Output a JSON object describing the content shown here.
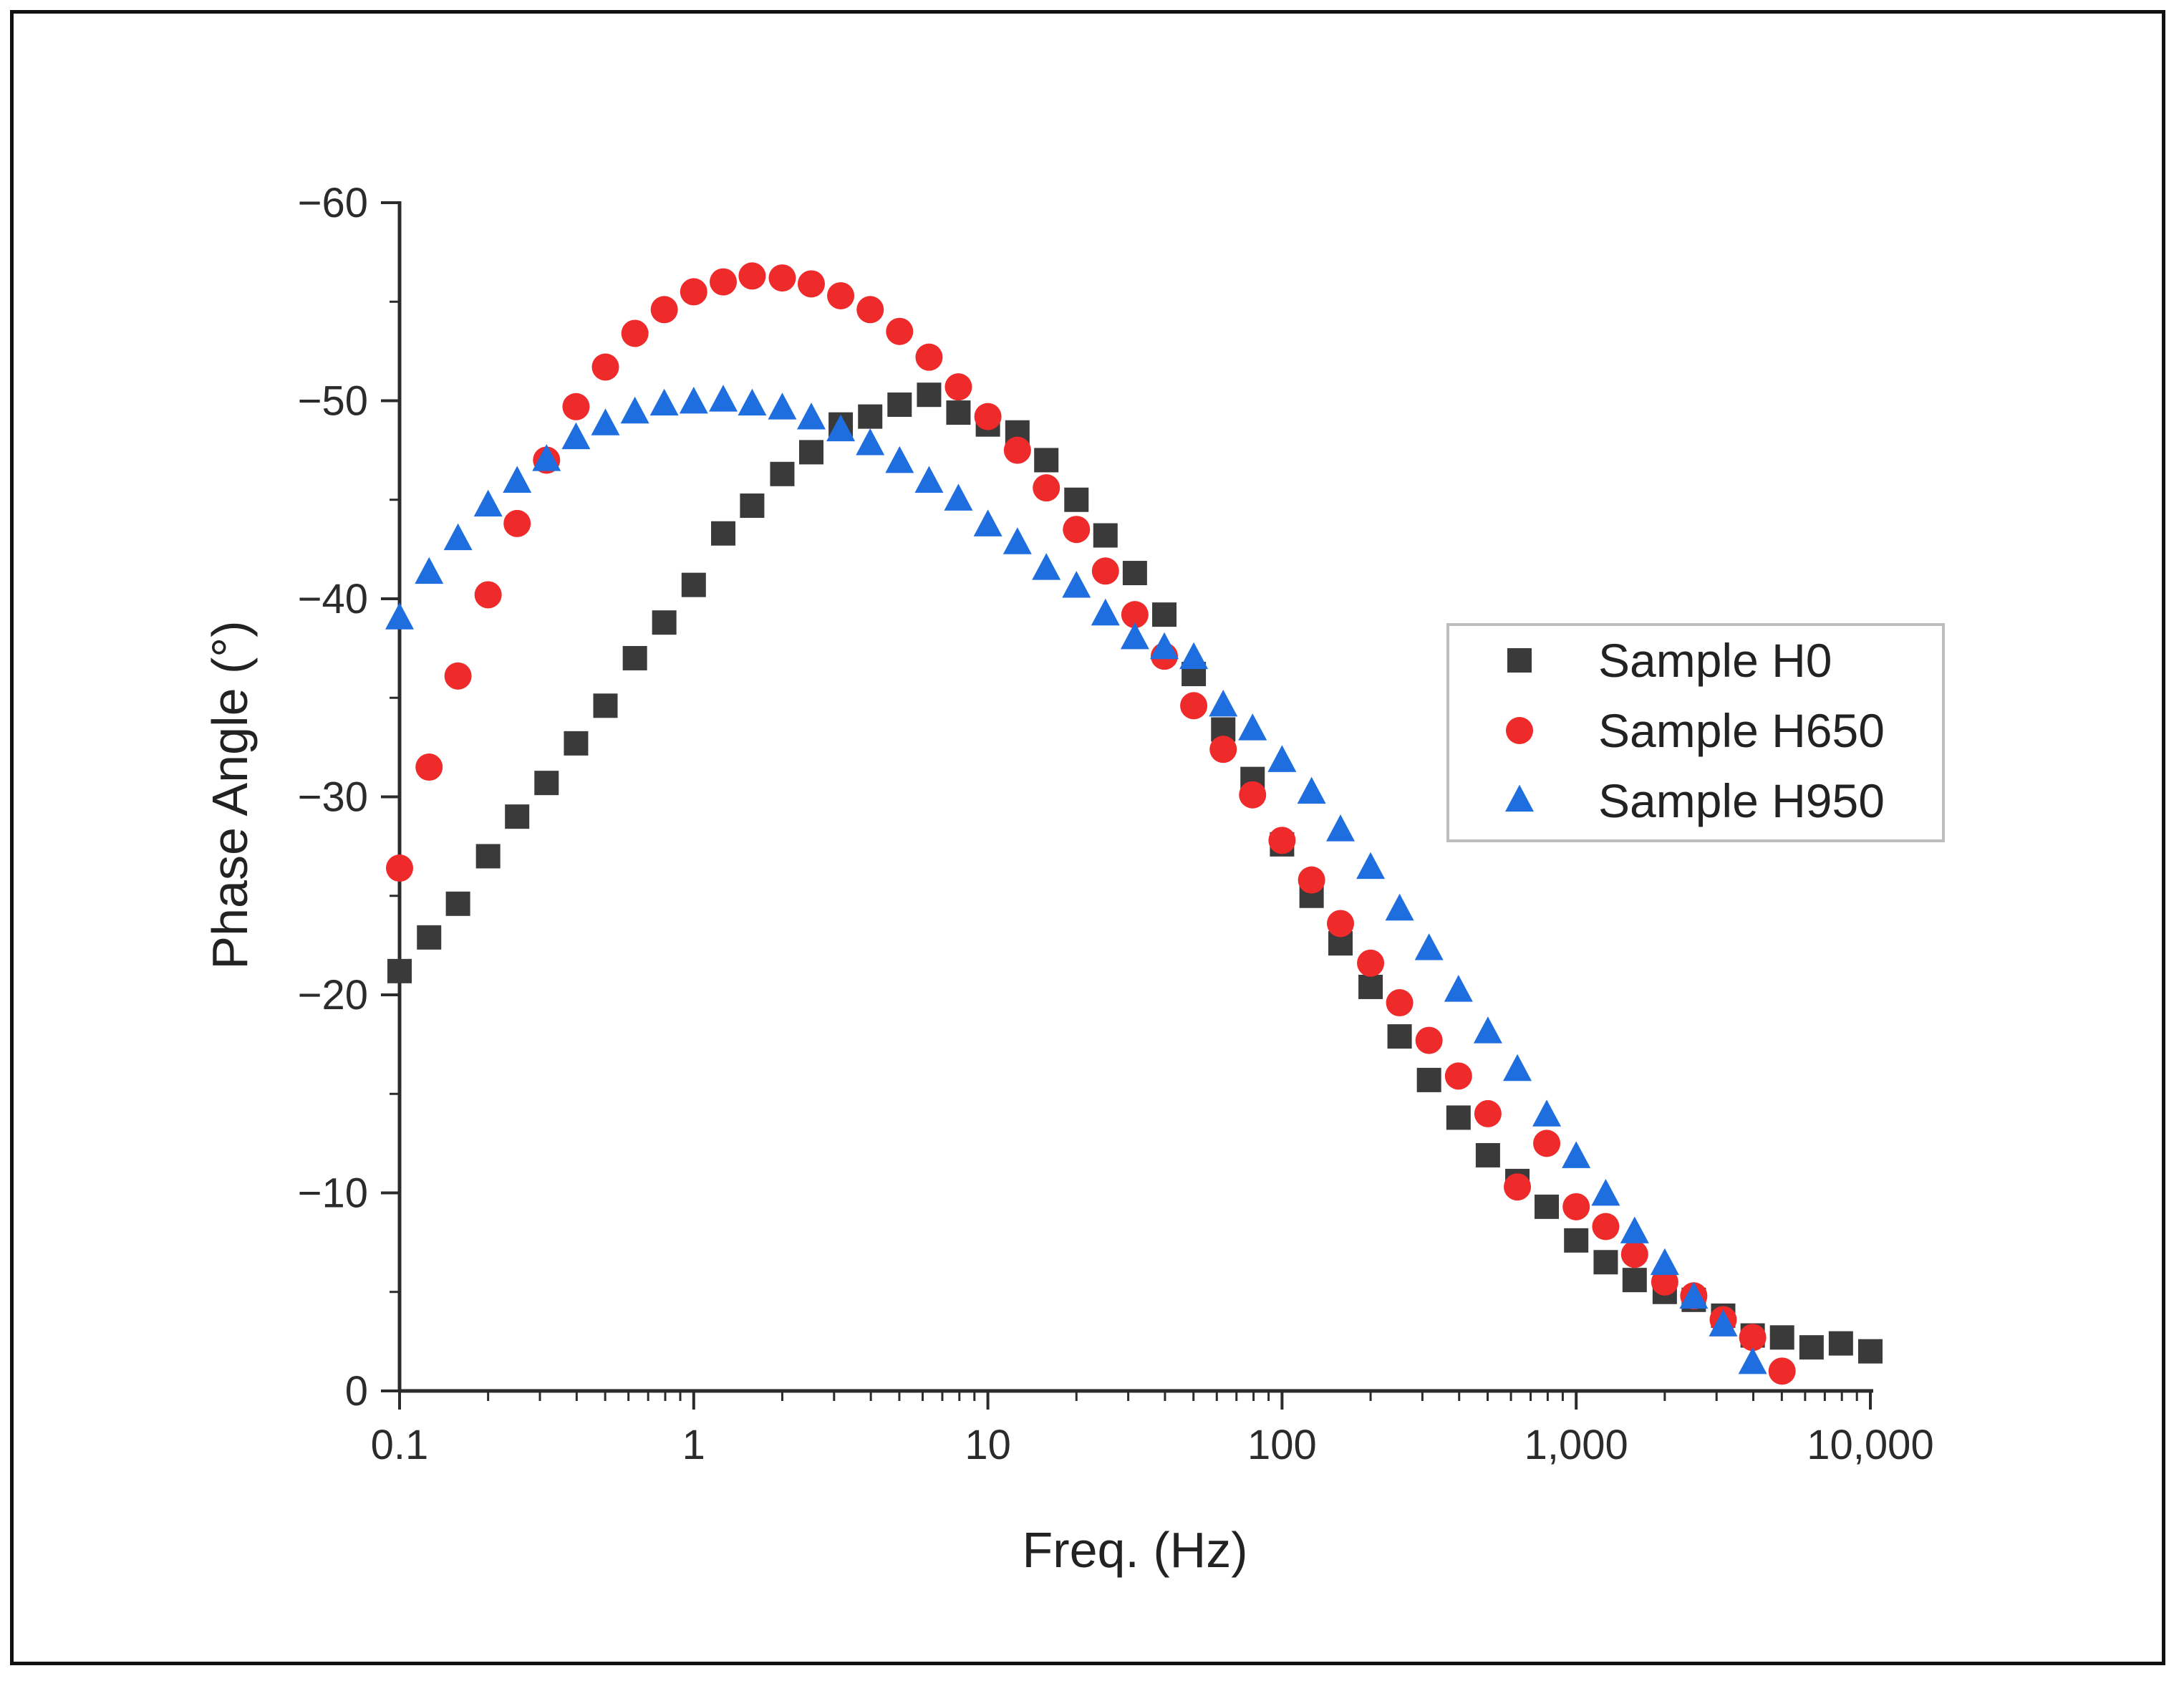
{
  "chart_data": {
    "type": "scatter",
    "xscale": "log",
    "xlabel": "Freq. (Hz)",
    "ylabel": "Phase Angle (°)",
    "xlim": [
      0.1,
      10000
    ],
    "ylim": [
      0,
      -60
    ],
    "xticks": [
      {
        "value": 0.1,
        "label": "0.1"
      },
      {
        "value": 1,
        "label": "1"
      },
      {
        "value": 10,
        "label": "10"
      },
      {
        "value": 100,
        "label": "100"
      },
      {
        "value": 1000,
        "label": "1,000"
      },
      {
        "value": 10000,
        "label": "10,000"
      }
    ],
    "yticks": [
      {
        "value": 0,
        "label": "0"
      },
      {
        "value": -10,
        "label": "−10"
      },
      {
        "value": -20,
        "label": "−20"
      },
      {
        "value": -30,
        "label": "−30"
      },
      {
        "value": -40,
        "label": "−40"
      },
      {
        "value": -50,
        "label": "−50"
      },
      {
        "value": -60,
        "label": "−60"
      }
    ],
    "legend_position": "right-middle",
    "series": [
      {
        "name": "Sample H0",
        "marker": "square",
        "color": "#3a3a3a",
        "x": [
          0.1,
          0.126,
          0.158,
          0.2,
          0.251,
          0.316,
          0.398,
          0.501,
          0.631,
          0.794,
          1.0,
          1.26,
          1.58,
          2.0,
          2.51,
          3.16,
          3.98,
          5.01,
          6.31,
          7.94,
          10.0,
          12.6,
          15.8,
          20.0,
          25.1,
          31.6,
          39.8,
          50.1,
          63.1,
          79.4,
          100,
          126,
          158,
          200,
          251,
          316,
          398,
          501,
          631,
          794,
          1000,
          1260,
          1580,
          2000,
          2510,
          3160,
          3980,
          5010,
          6310,
          7940,
          10000
        ],
        "y": [
          -21.2,
          -22.9,
          -24.6,
          -27.0,
          -29.0,
          -30.7,
          -32.7,
          -34.6,
          -37.0,
          -38.8,
          -40.7,
          -43.3,
          -44.7,
          -46.3,
          -47.4,
          -48.8,
          -49.2,
          -49.8,
          -50.3,
          -49.4,
          -48.8,
          -48.4,
          -47.0,
          -45.0,
          -43.2,
          -41.3,
          -39.2,
          -36.2,
          -33.4,
          -30.9,
          -27.6,
          -25.0,
          -22.6,
          -20.4,
          -17.9,
          -15.7,
          -13.8,
          -11.9,
          -10.6,
          -9.3,
          -7.6,
          -6.5,
          -5.6,
          -5.0,
          -4.6,
          -3.8,
          -2.8,
          -2.7,
          -2.2,
          -2.4,
          -2.0
        ]
      },
      {
        "name": "Sample H650",
        "marker": "circle",
        "color": "#ee2a2a",
        "x": [
          0.1,
          0.126,
          0.158,
          0.2,
          0.251,
          0.316,
          0.398,
          0.501,
          0.631,
          0.794,
          1.0,
          1.26,
          1.58,
          2.0,
          2.51,
          3.16,
          3.98,
          5.01,
          6.31,
          7.94,
          10.0,
          12.6,
          15.8,
          20.0,
          25.1,
          31.6,
          39.8,
          50.1,
          63.1,
          79.4,
          100,
          126,
          158,
          200,
          251,
          316,
          398,
          501,
          631,
          794,
          1000,
          1260,
          1580,
          2000,
          2510,
          3160,
          3980,
          5010
        ],
        "y": [
          -26.4,
          -31.5,
          -36.1,
          -40.2,
          -43.8,
          -47.0,
          -49.7,
          -51.7,
          -53.4,
          -54.6,
          -55.5,
          -56.0,
          -56.3,
          -56.2,
          -55.9,
          -55.3,
          -54.6,
          -53.5,
          -52.2,
          -50.7,
          -49.2,
          -47.5,
          -45.6,
          -43.5,
          -41.4,
          -39.2,
          -37.1,
          -34.6,
          -32.4,
          -30.1,
          -27.8,
          -25.8,
          -23.6,
          -21.6,
          -19.6,
          -17.7,
          -15.9,
          -14.0,
          -10.3,
          -12.5,
          -9.3,
          -8.3,
          -6.9,
          -5.5,
          -4.8,
          -3.6,
          -2.7,
          -1.0
        ]
      },
      {
        "name": "Sample H950",
        "marker": "triangle",
        "color": "#1f6ee0",
        "x": [
          0.1,
          0.126,
          0.158,
          0.2,
          0.251,
          0.316,
          0.398,
          0.501,
          0.631,
          0.794,
          1.0,
          1.26,
          1.58,
          2.0,
          2.51,
          3.16,
          3.98,
          5.01,
          6.31,
          7.94,
          10.0,
          12.6,
          15.8,
          20.0,
          25.1,
          31.6,
          39.8,
          50.1,
          63.1,
          79.4,
          100,
          126,
          158,
          200,
          251,
          316,
          398,
          501,
          631,
          794,
          1000,
          1260,
          1580,
          2000,
          2510,
          3160,
          3980
        ],
        "y": [
          -39.0,
          -41.3,
          -43.0,
          -44.7,
          -45.9,
          -47.0,
          -48.1,
          -48.8,
          -49.4,
          -49.8,
          -49.9,
          -50.0,
          -49.8,
          -49.6,
          -49.1,
          -48.5,
          -47.8,
          -46.9,
          -45.9,
          -45.0,
          -43.7,
          -42.8,
          -41.5,
          -40.6,
          -39.2,
          -38.0,
          -37.5,
          -37.0,
          -34.6,
          -33.4,
          -31.8,
          -30.2,
          -28.3,
          -26.4,
          -24.3,
          -22.3,
          -20.2,
          -18.1,
          -16.2,
          -13.9,
          -11.8,
          -9.9,
          -8.0,
          -6.4,
          -4.7,
          -3.3,
          -1.4
        ]
      }
    ]
  }
}
